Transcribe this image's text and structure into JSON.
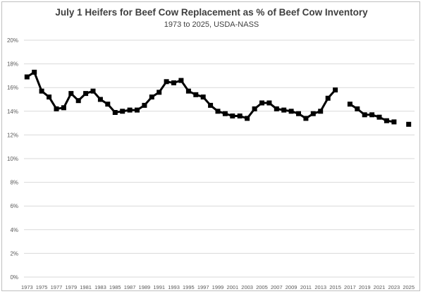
{
  "chart_data": {
    "type": "line",
    "title": "July 1 Heifers for Beef Cow Replacement as % of Beef Cow Inventory",
    "subtitle": "1973 to 2025, USDA-NASS",
    "xlabel": "",
    "ylabel": "",
    "ylim": [
      0,
      20
    ],
    "y_ticks": [
      "0%",
      "2%",
      "4%",
      "6%",
      "8%",
      "10%",
      "12%",
      "14%",
      "16%",
      "18%",
      "20%"
    ],
    "x_ticks": [
      "1973",
      "1975",
      "1977",
      "1979",
      "1981",
      "1983",
      "1985",
      "1987",
      "1989",
      "1991",
      "1993",
      "1995",
      "1997",
      "1999",
      "2001",
      "2003",
      "2005",
      "2007",
      "2009",
      "2011",
      "2013",
      "2015",
      "2017",
      "2019",
      "2021",
      "2023",
      "2025"
    ],
    "grid": "horizontal",
    "legend": "none",
    "line_color": "#000000",
    "grid_color": "#d9d9d9",
    "series": [
      {
        "x": [
          1973,
          1974,
          1975,
          1976,
          1977,
          1978,
          1979,
          1980,
          1981,
          1982,
          1983,
          1984,
          1985,
          1986,
          1987,
          1988,
          1989,
          1990,
          1991,
          1992,
          1993,
          1994,
          1995,
          1996,
          1997,
          1998,
          1999,
          2000,
          2001,
          2002,
          2003,
          2004,
          2005,
          2006,
          2007,
          2008,
          2009,
          2010,
          2011,
          2012,
          2013,
          2014,
          2015,
          2016,
          2017,
          2018,
          2019,
          2020,
          2021,
          2022,
          2023,
          2024,
          2025
        ],
        "values": [
          16.9,
          17.3,
          15.7,
          15.2,
          14.2,
          14.3,
          15.5,
          14.9,
          15.5,
          15.7,
          15.0,
          14.6,
          13.9,
          14.0,
          14.1,
          14.1,
          14.5,
          15.2,
          15.6,
          16.5,
          16.4,
          16.6,
          15.7,
          15.4,
          15.2,
          14.5,
          14.0,
          13.8,
          13.6,
          13.6,
          13.4,
          14.2,
          14.7,
          14.7,
          14.2,
          14.1,
          14.0,
          13.8,
          13.4,
          13.8,
          14.0,
          15.1,
          15.8,
          null,
          14.6,
          14.2,
          13.7,
          13.7,
          13.5,
          13.2,
          13.1,
          null,
          12.9
        ]
      }
    ]
  }
}
